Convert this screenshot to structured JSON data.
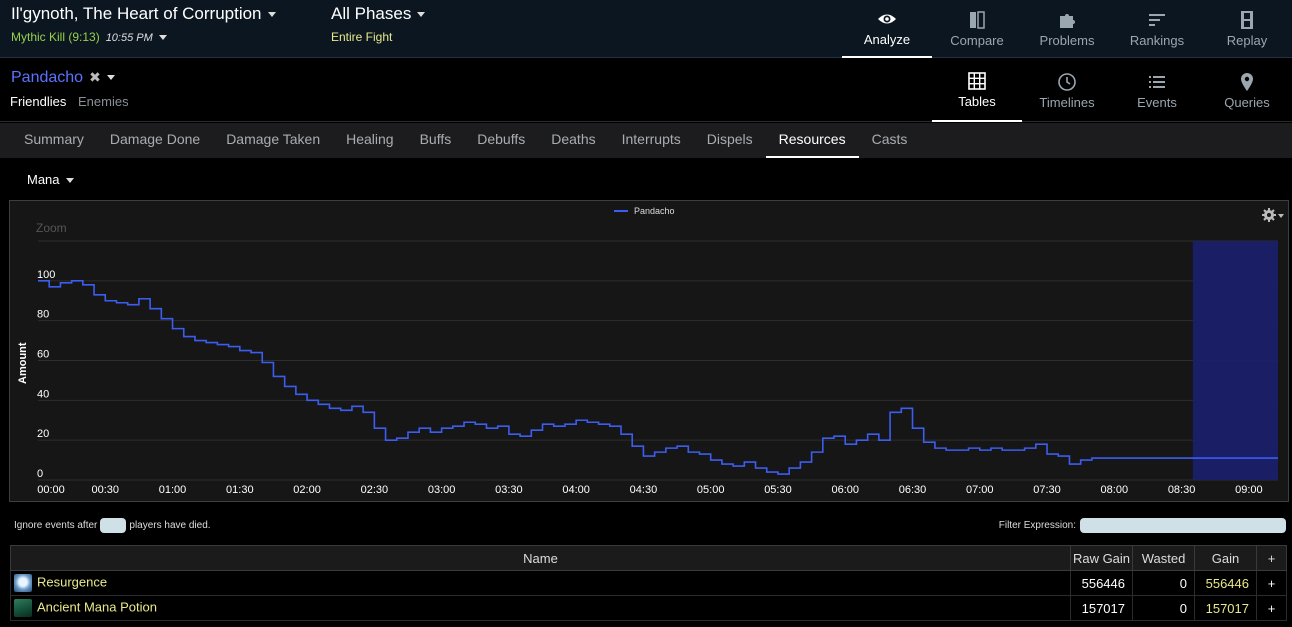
{
  "header": {
    "fight_title": "Il'gynoth, The Heart of Corruption",
    "kill_label": "Mythic Kill (9:13)",
    "kill_time": "10:55 PM",
    "phase_title": "All Phases",
    "phase_sub": "Entire Fight",
    "nav": [
      {
        "label": "Analyze",
        "icon": "eye-icon",
        "active": true
      },
      {
        "label": "Compare",
        "icon": "compare-icon",
        "active": false
      },
      {
        "label": "Problems",
        "icon": "puzzle-icon",
        "active": false
      },
      {
        "label": "Rankings",
        "icon": "rankings-icon",
        "active": false
      },
      {
        "label": "Replay",
        "icon": "film-icon",
        "active": false
      }
    ]
  },
  "player": {
    "name": "Pandacho",
    "tabs": [
      "Friendlies",
      "Enemies"
    ],
    "views": [
      {
        "label": "Tables",
        "icon": "grid-icon",
        "active": true
      },
      {
        "label": "Timelines",
        "icon": "clock-icon",
        "active": false
      },
      {
        "label": "Events",
        "icon": "list-icon",
        "active": false
      },
      {
        "label": "Queries",
        "icon": "pin-icon",
        "active": false
      }
    ]
  },
  "tabs": [
    "Summary",
    "Damage Done",
    "Damage Taken",
    "Healing",
    "Buffs",
    "Debuffs",
    "Deaths",
    "Interrupts",
    "Dispels",
    "Resources",
    "Casts"
  ],
  "active_tab": "Resources",
  "resource_type": "Mana",
  "chart_data": {
    "type": "line",
    "title": "",
    "ylabel": "Amount",
    "zoom_label": "Zoom",
    "ylim": [
      0,
      120
    ],
    "yticks": [
      0,
      20,
      40,
      60,
      80,
      100
    ],
    "xlim": [
      0,
      553
    ],
    "xticks": [
      "00:00",
      "00:30",
      "01:00",
      "01:30",
      "02:00",
      "02:30",
      "03:00",
      "03:30",
      "04:00",
      "04:30",
      "05:00",
      "05:30",
      "06:00",
      "06:30",
      "07:00",
      "07:30",
      "08:00",
      "08:30",
      "09:00"
    ],
    "grid": true,
    "legend": "top-center",
    "highlight_range": [
      515,
      553
    ],
    "series": [
      {
        "name": "Pandacho",
        "color": "#3b5df0",
        "x": [
          0,
          5,
          10,
          15,
          20,
          25,
          30,
          35,
          40,
          45,
          50,
          55,
          60,
          65,
          70,
          75,
          80,
          85,
          90,
          95,
          100,
          105,
          110,
          115,
          120,
          125,
          130,
          135,
          140,
          145,
          150,
          155,
          160,
          165,
          170,
          175,
          180,
          185,
          190,
          195,
          200,
          205,
          210,
          215,
          220,
          225,
          230,
          235,
          240,
          245,
          250,
          255,
          260,
          265,
          270,
          275,
          280,
          285,
          290,
          295,
          300,
          305,
          310,
          315,
          320,
          325,
          330,
          335,
          340,
          345,
          350,
          355,
          360,
          365,
          370,
          375,
          380,
          385,
          390,
          395,
          400,
          405,
          410,
          415,
          420,
          425,
          430,
          435,
          440,
          445,
          450,
          455,
          460,
          465,
          470,
          475,
          480,
          485,
          490,
          495,
          500,
          505,
          510,
          515,
          520,
          525,
          530,
          535,
          540,
          545,
          550
        ],
        "values": [
          100,
          97,
          99,
          100,
          98,
          93,
          90,
          89,
          88,
          91,
          86,
          81,
          76,
          72,
          70,
          69,
          68,
          67,
          65,
          64,
          59,
          52,
          47,
          43,
          40,
          38,
          36,
          35,
          37,
          34,
          26,
          20,
          21,
          24,
          26,
          24,
          26,
          27,
          29,
          28,
          26,
          27,
          23,
          22,
          25,
          28,
          27,
          28,
          30,
          29,
          28,
          27,
          23,
          17,
          12,
          14,
          16,
          17,
          14,
          13,
          10,
          8,
          7,
          9,
          6,
          4,
          3,
          6,
          9,
          14,
          21,
          22,
          18,
          20,
          23,
          20,
          34,
          36,
          26,
          19,
          16,
          15,
          15,
          16,
          15,
          16,
          15,
          15,
          16,
          18,
          13,
          12,
          8,
          10,
          11,
          11,
          11,
          11,
          11,
          11,
          11,
          11,
          11,
          11,
          11,
          11,
          11,
          11,
          11,
          11,
          11
        ]
      }
    ]
  },
  "filters": {
    "ignore_prefix": "Ignore events after",
    "ignore_suffix": "players have died.",
    "ignore_value": "",
    "filter_label": "Filter Expression:",
    "filter_value": ""
  },
  "table": {
    "headers": [
      "Name",
      "Raw Gain",
      "Wasted",
      "Gain",
      "+"
    ],
    "rows": [
      {
        "name": "Resurgence",
        "icon": "resurgence-icon",
        "raw_gain": "556446",
        "wasted": "0",
        "gain": "556446"
      },
      {
        "name": "Ancient Mana Potion",
        "icon": "mana-potion-icon",
        "raw_gain": "157017",
        "wasted": "0",
        "gain": "157017"
      }
    ]
  }
}
